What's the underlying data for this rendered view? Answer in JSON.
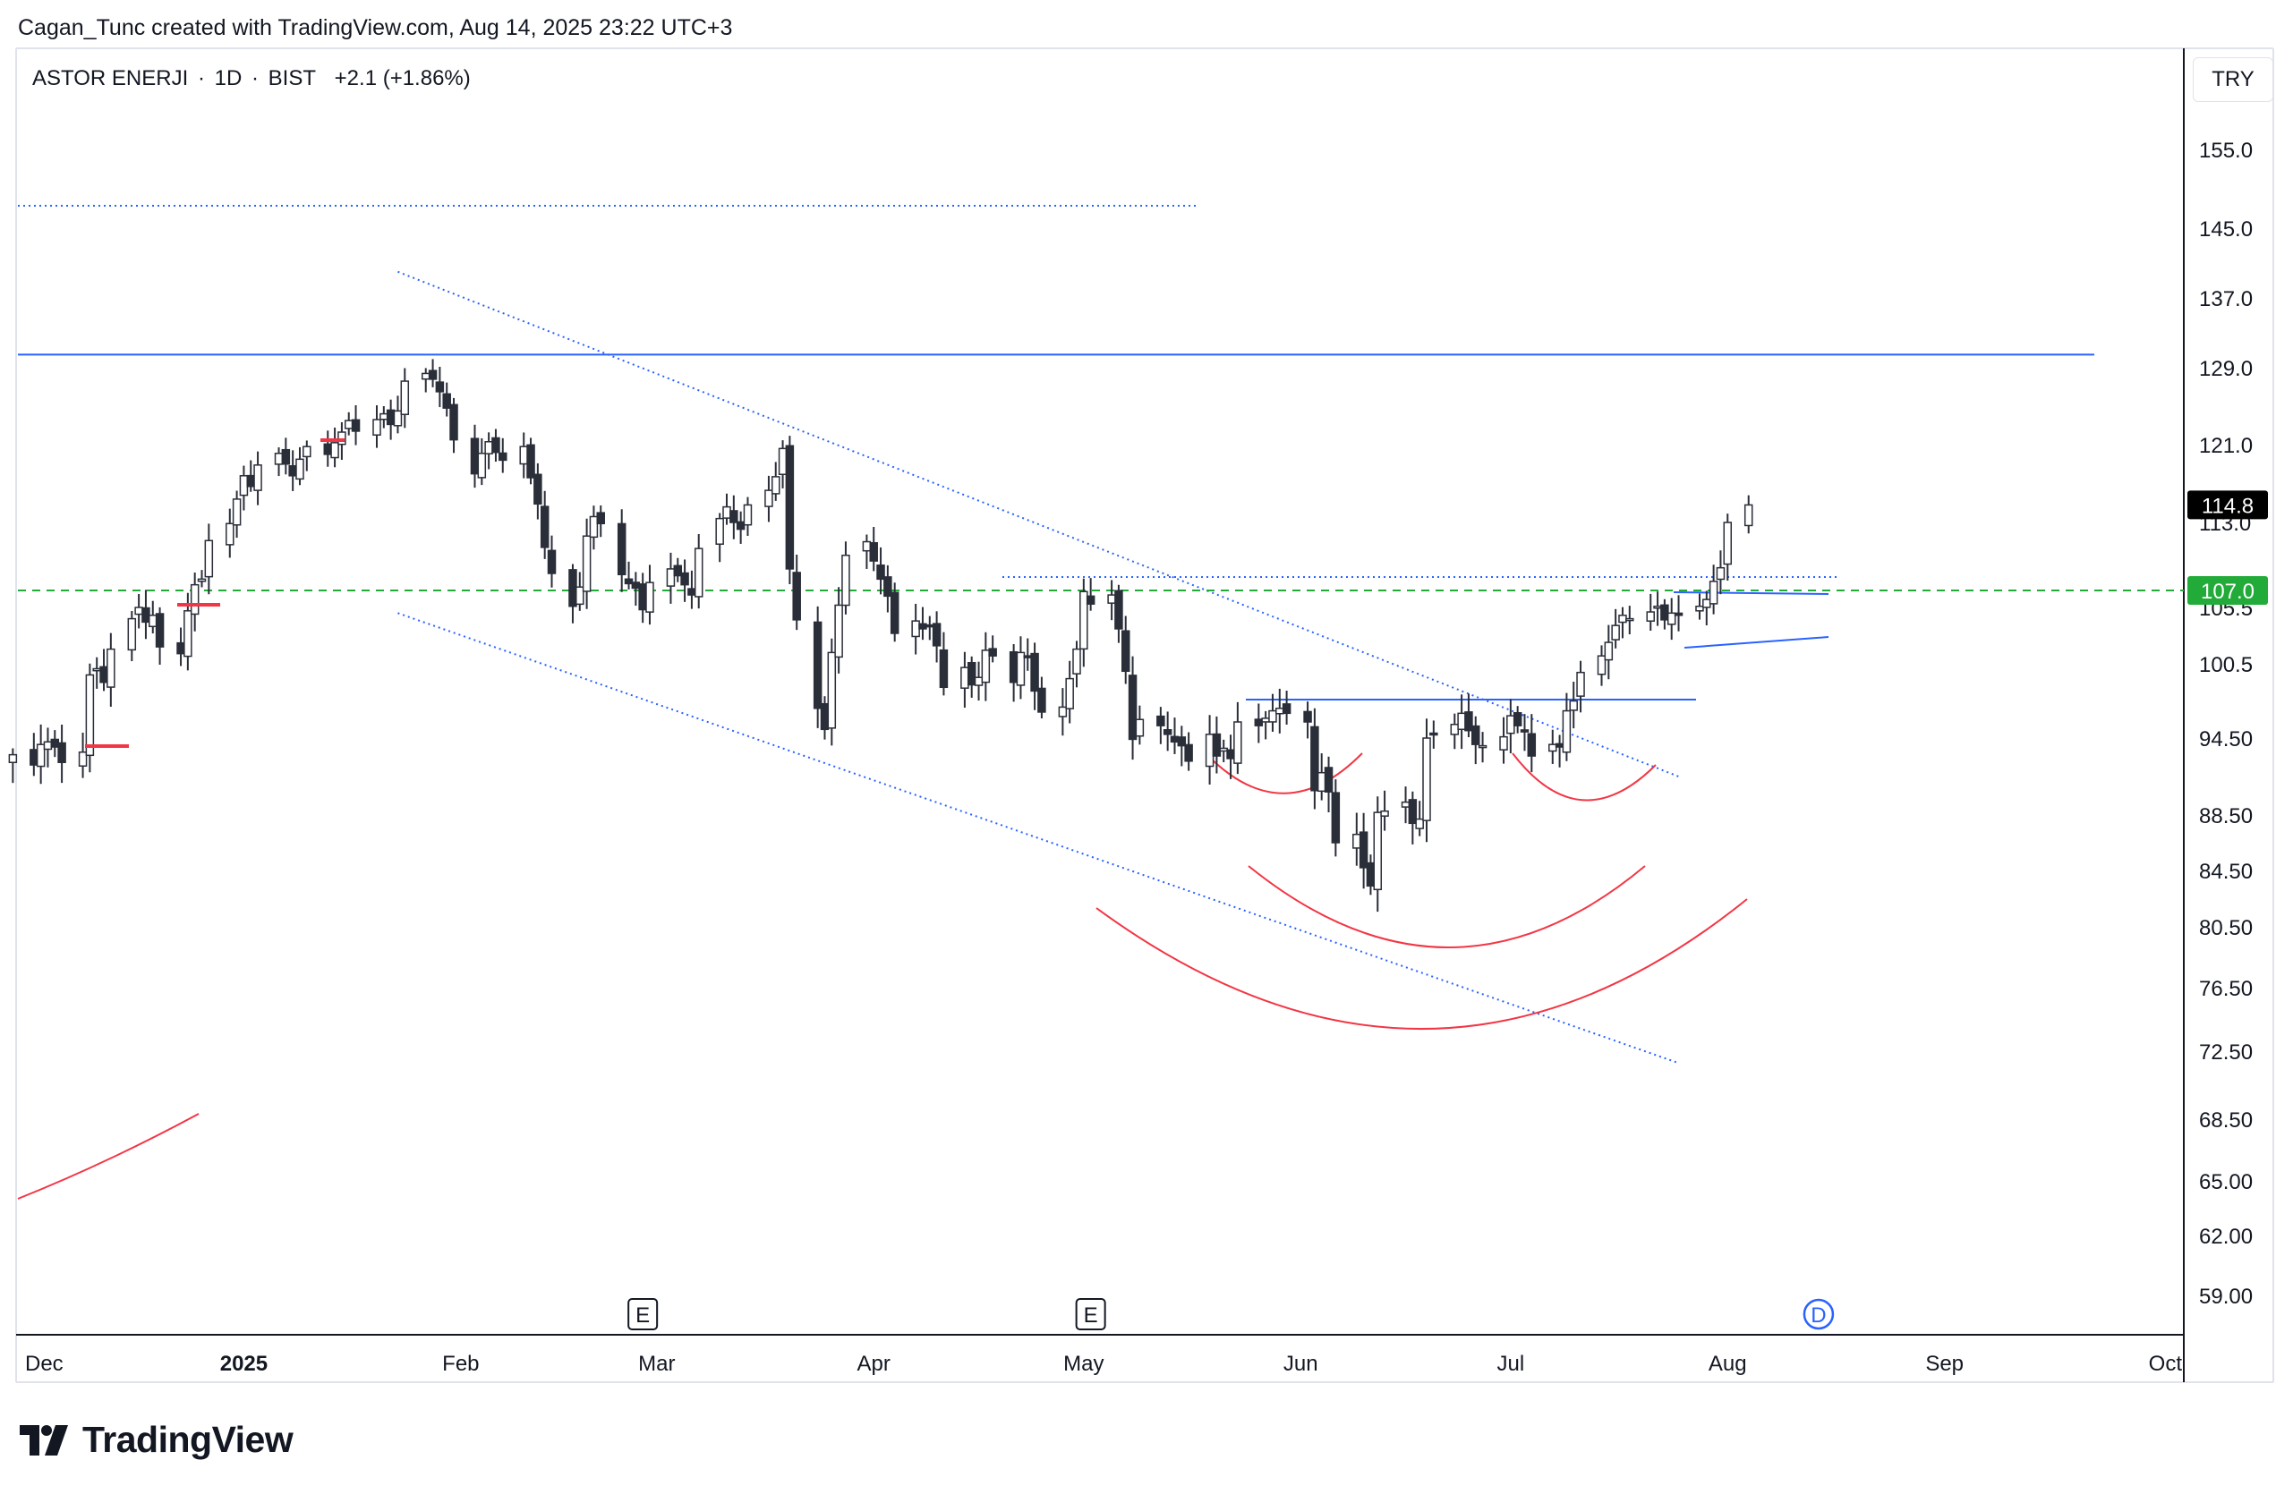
{
  "header": {
    "text": "Cagan_Tunc created with TradingView.com, Aug 14, 2025 23:22 UTC+3"
  },
  "legend": {
    "symbol": "ASTOR ENERJI",
    "interval": "1D",
    "exchange": "BIST",
    "change": "+2.1 (+1.86%)",
    "separator": "·"
  },
  "currency": "TRY",
  "logo": {
    "text": "TradingView",
    "icon": "tradingview-logo-icon"
  },
  "colors": {
    "up_candle": "#ffffff",
    "down_candle": "#2a2e39",
    "candle_border": "#2a2e39",
    "trendline_blue": "#2962ff",
    "curve_red": "#f23645",
    "support_green": "#22ab39",
    "price_tag_dark": "#000000",
    "price_tag_green": "#22ab39"
  },
  "chart_data": {
    "type": "candlestick",
    "x_labels": [
      "Dec",
      "2025",
      "Feb",
      "Mar",
      "Apr",
      "May",
      "Jun",
      "Jul",
      "Aug",
      "Sep",
      "Oct"
    ],
    "y_ticks": [
      "155.0",
      "145.0",
      "137.0",
      "129.0",
      "121.0",
      "113.0",
      "105.5",
      "100.5",
      "94.50",
      "88.50",
      "84.50",
      "80.50",
      "76.50",
      "72.50",
      "68.50",
      "65.00",
      "62.00",
      "59.00"
    ],
    "last_price": "114.8",
    "support_price": "107.0",
    "resistance_price": 130.5,
    "event_markers": [
      {
        "label": "E",
        "date": "2025-02-27"
      },
      {
        "label": "E",
        "date": "2025-05-02"
      },
      {
        "label": "D",
        "date": "2025-08-14"
      }
    ],
    "closes": [
      93.2,
      92.4,
      94.0,
      94.2,
      93.8,
      92.6,
      93.4,
      99.6,
      100.1,
      99.0,
      101.8,
      104.5,
      105.5,
      104.2,
      104.8,
      102.0,
      101.4,
      105.2,
      107.5,
      108.0,
      111.4,
      112.9,
      115.4,
      117.8,
      116.7,
      118.9,
      120.1,
      119.0,
      117.8,
      119.5,
      120.8,
      120.0,
      121.2,
      122.3,
      123.5,
      122.4,
      123.6,
      124.2,
      123.1,
      124.5,
      127.6,
      128.4,
      127.8,
      126.5,
      124.8,
      121.5,
      118.0,
      120.1,
      121.3,
      120.2,
      119.4,
      120.8,
      117.6,
      114.9,
      110.8,
      108.5,
      105.6,
      107.3,
      111.8,
      113.6,
      112.9,
      108.4,
      107.6,
      107.2,
      105.3,
      107.7,
      108.9,
      108.3,
      107.5,
      106.6,
      110.7,
      113.4,
      114.6,
      113.0,
      112.4,
      114.8,
      116.3,
      117.7,
      120.6,
      108.9,
      104.4,
      96.9,
      95.2,
      101.5,
      105.7,
      110.1,
      111.3,
      109.6,
      108.0,
      106.5,
      103.2,
      104.3,
      103.6,
      103.9,
      102.1,
      98.6,
      100.2,
      98.8,
      99.4,
      101.7,
      101.2,
      99.0,
      101.5,
      101.1,
      98.3,
      96.6,
      97.0,
      99.3,
      101.8,
      106.9,
      105.8,
      106.6,
      103.6,
      99.9,
      94.4,
      96.0,
      95.5,
      94.8,
      94.2,
      93.9,
      92.7,
      94.8,
      93.1,
      93.7,
      92.9,
      95.8,
      95.5,
      96.1,
      96.7,
      96.9,
      96.5,
      95.8,
      90.4,
      91.8,
      90.3,
      86.5,
      87.1,
      84.7,
      83.4,
      88.7,
      88.8,
      89.5,
      87.9,
      88.2,
      94.5,
      94.8,
      95.6,
      96.5,
      95.1,
      94.0,
      93.9,
      94.6,
      96.3,
      95.5,
      95.0,
      93.1,
      94.0,
      93.8,
      96.7,
      97.5,
      99.8,
      101.2,
      102.4,
      103.9,
      104.8,
      104.5,
      105.1,
      105.6,
      104.4,
      105.0,
      104.8,
      105.6,
      106.2,
      107.8,
      109.0,
      113.0,
      114.8
    ],
    "channel": {
      "upper": [
        {
          "date": "2025-01-23",
          "price": 140.0
        },
        {
          "date": "2025-07-25",
          "price": 91.5
        }
      ],
      "lower": [
        {
          "date": "2025-01-23",
          "price": 105.0
        },
        {
          "date": "2025-07-25",
          "price": 71.8
        }
      ]
    }
  }
}
